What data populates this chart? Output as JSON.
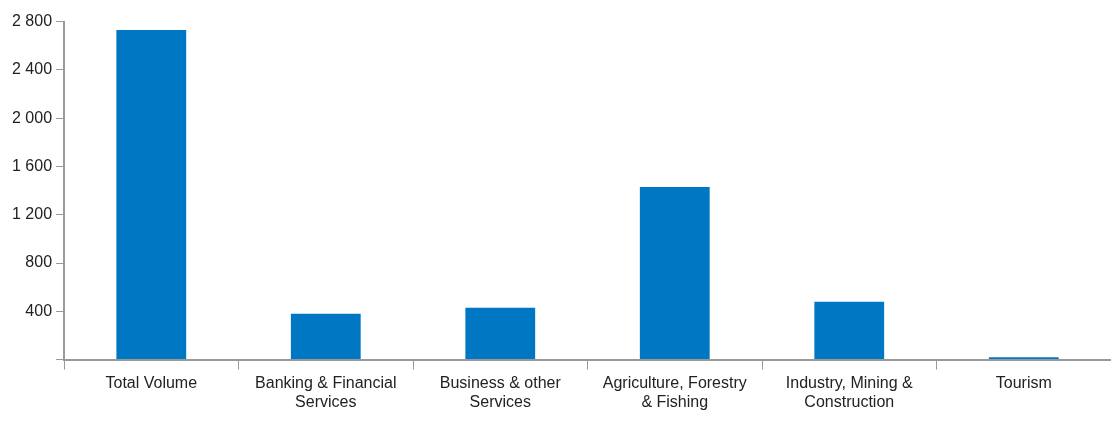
{
  "chart_data": {
    "type": "bar",
    "categories": [
      "Total Volume",
      "Banking & Financial Services",
      "Business & other Services",
      "Agriculture, Forestry & Fishing",
      "Industry, Mining & Construction",
      "Tourism"
    ],
    "values": [
      2730,
      380,
      430,
      1430,
      480,
      20
    ],
    "color": "#0077c2",
    "ylim": [
      0,
      2800
    ],
    "yticks": [
      {
        "value": 0,
        "label": null
      },
      {
        "value": 400,
        "label": "400"
      },
      {
        "value": 800,
        "label": "800"
      },
      {
        "value": 1200,
        "label": "1 200"
      },
      {
        "value": 1600,
        "label": "1 600"
      },
      {
        "value": 2000,
        "label": "2 000"
      },
      {
        "value": 2400,
        "label": "2 400"
      },
      {
        "value": 2800,
        "label": "2 800"
      }
    ],
    "grid": false,
    "legend": false
  }
}
